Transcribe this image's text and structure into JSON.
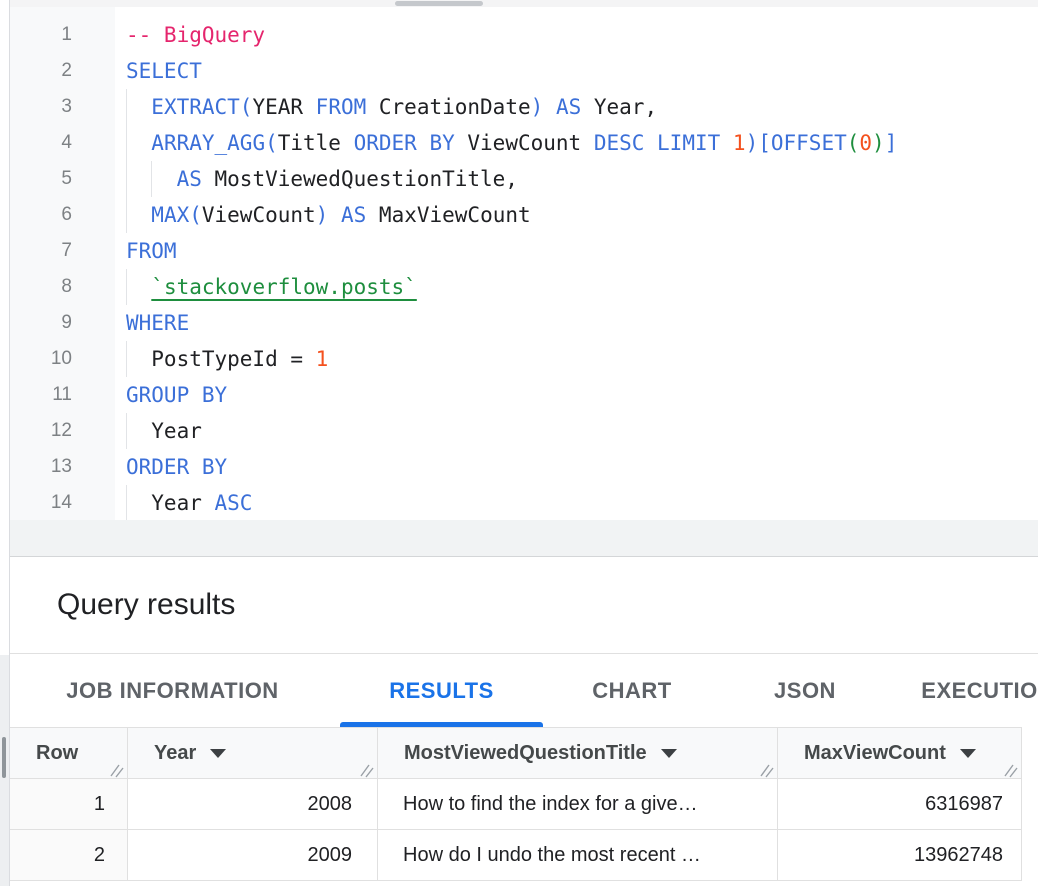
{
  "colors": {
    "kw": "#3b6fd8",
    "comment": "#e5256d",
    "number": "#f4511e",
    "green": "#1e8e3e",
    "plain": "#202124",
    "lineNumber": "#7d8184",
    "accent": "#1a73e8",
    "tabGray": "#5f6368",
    "headerText": "#45494a",
    "border": "#e0e0e0",
    "headerBg": "#f8f9fa",
    "gutterBg": "#f8f9fa",
    "bandBg": "#f1f3f4",
    "dividerStrong": "#d4d6d8",
    "scrollThumb": "#8f959a",
    "scrollTrack": "#edeff1",
    "hThumb": "#c5c8cc",
    "hTrack": "#f4f4f5"
  },
  "editor": {
    "lines": [
      {
        "n": "1",
        "indent": 0,
        "tokens": [
          {
            "c": "comment",
            "t": "-- BigQuery"
          }
        ]
      },
      {
        "n": "2",
        "indent": 0,
        "tokens": [
          {
            "c": "kw",
            "t": "SELECT"
          }
        ]
      },
      {
        "n": "3",
        "indent": 1,
        "tokens": [
          {
            "c": "plain",
            "t": "  "
          },
          {
            "c": "kw",
            "t": "EXTRACT("
          },
          {
            "c": "plain",
            "t": "YEAR "
          },
          {
            "c": "kw",
            "t": "FROM"
          },
          {
            "c": "plain",
            "t": " CreationDate"
          },
          {
            "c": "kw",
            "t": ")"
          },
          {
            "c": "plain",
            "t": " "
          },
          {
            "c": "kw",
            "t": "AS"
          },
          {
            "c": "plain",
            "t": " Year,"
          }
        ]
      },
      {
        "n": "4",
        "indent": 1,
        "tokens": [
          {
            "c": "plain",
            "t": "  "
          },
          {
            "c": "kw",
            "t": "ARRAY_AGG("
          },
          {
            "c": "plain",
            "t": "Title "
          },
          {
            "c": "kw",
            "t": "ORDER BY"
          },
          {
            "c": "plain",
            "t": " ViewCount "
          },
          {
            "c": "kw",
            "t": "DESC LIMIT"
          },
          {
            "c": "plain",
            "t": " "
          },
          {
            "c": "num",
            "t": "1"
          },
          {
            "c": "kw",
            "t": ")["
          },
          {
            "c": "kw",
            "t": "OFFSET"
          },
          {
            "c": "green",
            "t": "("
          },
          {
            "c": "num",
            "t": "0"
          },
          {
            "c": "green",
            "t": ")"
          },
          {
            "c": "kw",
            "t": "]"
          }
        ]
      },
      {
        "n": "5",
        "indent": 2,
        "tokens": [
          {
            "c": "plain",
            "t": "    "
          },
          {
            "c": "kw",
            "t": "AS"
          },
          {
            "c": "plain",
            "t": " MostViewedQuestionTitle,"
          }
        ]
      },
      {
        "n": "6",
        "indent": 1,
        "tokens": [
          {
            "c": "plain",
            "t": "  "
          },
          {
            "c": "kw",
            "t": "MAX("
          },
          {
            "c": "plain",
            "t": "ViewCount"
          },
          {
            "c": "kw",
            "t": ")"
          },
          {
            "c": "plain",
            "t": " "
          },
          {
            "c": "kw",
            "t": "AS"
          },
          {
            "c": "plain",
            "t": " MaxViewCount"
          }
        ]
      },
      {
        "n": "7",
        "indent": 0,
        "tokens": [
          {
            "c": "kw",
            "t": "FROM"
          }
        ]
      },
      {
        "n": "8",
        "indent": 1,
        "tokens": [
          {
            "c": "plain",
            "t": "  "
          },
          {
            "c": "ref",
            "t": "`stackoverflow.posts`"
          }
        ]
      },
      {
        "n": "9",
        "indent": 0,
        "tokens": [
          {
            "c": "kw",
            "t": "WHERE"
          }
        ]
      },
      {
        "n": "10",
        "indent": 1,
        "tokens": [
          {
            "c": "plain",
            "t": "  PostTypeId = "
          },
          {
            "c": "num",
            "t": "1"
          }
        ]
      },
      {
        "n": "11",
        "indent": 0,
        "tokens": [
          {
            "c": "kw",
            "t": "GROUP BY"
          }
        ]
      },
      {
        "n": "12",
        "indent": 1,
        "tokens": [
          {
            "c": "plain",
            "t": "  Year"
          }
        ]
      },
      {
        "n": "13",
        "indent": 0,
        "tokens": [
          {
            "c": "kw",
            "t": "ORDER BY"
          }
        ]
      },
      {
        "n": "14",
        "indent": 1,
        "tokens": [
          {
            "c": "plain",
            "t": "  Year "
          },
          {
            "c": "kw",
            "t": "ASC"
          }
        ]
      }
    ]
  },
  "results_panel": {
    "title": "Query results"
  },
  "tabs": [
    {
      "label": "JOB INFORMATION",
      "active": false
    },
    {
      "label": "RESULTS",
      "active": true
    },
    {
      "label": "CHART",
      "active": false
    },
    {
      "label": "JSON",
      "active": false
    },
    {
      "label": "EXECUTION DETAILS",
      "active": false
    }
  ],
  "table": {
    "columns": [
      {
        "label": "Row",
        "sortable": false
      },
      {
        "label": "Year",
        "sortable": true
      },
      {
        "label": "MostViewedQuestionTitle",
        "sortable": true
      },
      {
        "label": "MaxViewCount",
        "sortable": true
      }
    ],
    "rows": [
      [
        "1",
        "2008",
        "How to find the index for a give…",
        "6316987"
      ],
      [
        "2",
        "2009",
        "How do I undo the most recent …",
        "13962748"
      ]
    ]
  }
}
